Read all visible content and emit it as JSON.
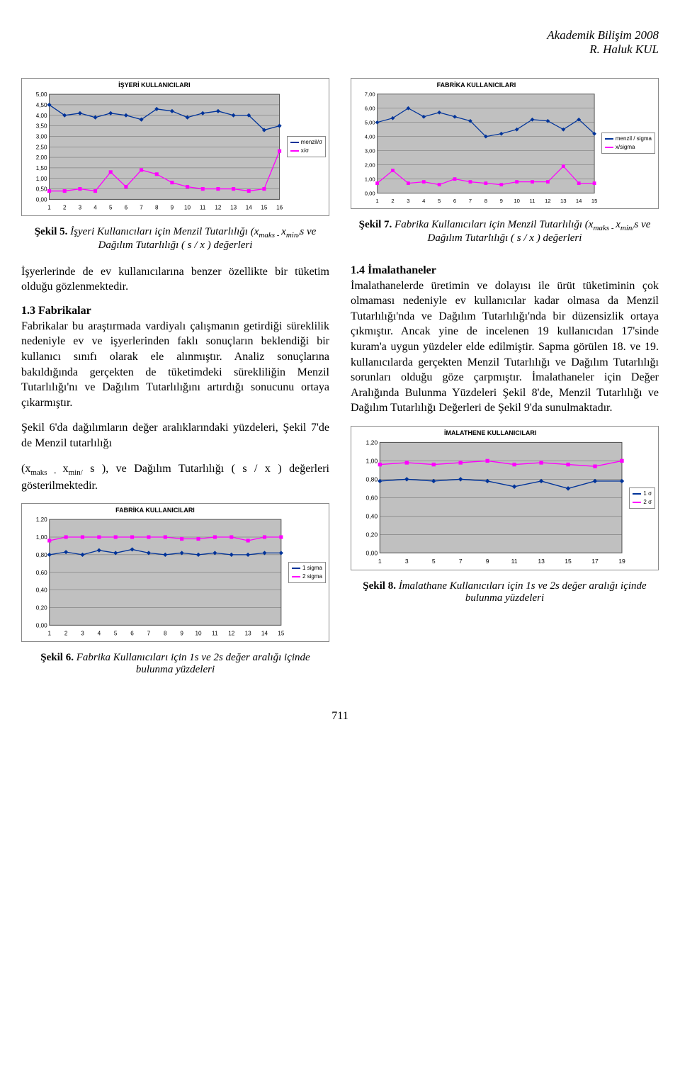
{
  "header": {
    "conference": "Akademik Bilişim 2008",
    "author": "R. Haluk KUL"
  },
  "chart5": {
    "type": "line",
    "title": "İŞYERİ KULLANICILARI",
    "x": [
      1,
      2,
      3,
      4,
      5,
      6,
      7,
      8,
      9,
      10,
      11,
      12,
      13,
      14,
      15,
      16
    ],
    "series": [
      {
        "name": "menzil/σ",
        "color": "#003399",
        "marker": "diamond",
        "y": [
          4.5,
          4.0,
          4.1,
          3.9,
          4.1,
          4.0,
          3.8,
          4.3,
          4.2,
          3.9,
          4.1,
          4.2,
          4.0,
          4.0,
          3.3,
          3.5
        ]
      },
      {
        "name": "x/σ",
        "color": "#ff00ff",
        "marker": "square",
        "y": [
          0.4,
          0.4,
          0.5,
          0.4,
          1.3,
          0.6,
          1.4,
          1.2,
          0.8,
          0.6,
          0.5,
          0.5,
          0.5,
          0.4,
          0.5,
          2.3
        ]
      }
    ],
    "ylim": [
      0,
      5
    ],
    "ytick_step": 0.5,
    "ytick_labels": [
      "0,00",
      "0,50",
      "1,00",
      "1,50",
      "2,00",
      "2,50",
      "3,00",
      "3,50",
      "4,00",
      "4,50",
      "5,00"
    ],
    "bg": "#c0c0c0",
    "grid": "#555",
    "title_fontsize": 9,
    "axis_fontsize": 8
  },
  "chart7": {
    "type": "line",
    "title": "FABRİKA KULLANICILARI",
    "x": [
      1,
      2,
      3,
      4,
      5,
      6,
      7,
      8,
      9,
      10,
      11,
      12,
      13,
      14,
      15
    ],
    "series": [
      {
        "name": "menzil / sigma",
        "color": "#003399",
        "marker": "diamond",
        "y": [
          5.0,
          5.3,
          6.0,
          5.4,
          5.7,
          5.4,
          5.1,
          4.0,
          4.2,
          4.5,
          5.2,
          5.1,
          4.5,
          5.2,
          4.2
        ]
      },
      {
        "name": "x/sigma",
        "color": "#ff00ff",
        "marker": "square",
        "y": [
          0.7,
          1.6,
          0.7,
          0.8,
          0.6,
          1.0,
          0.8,
          0.7,
          0.6,
          0.8,
          0.8,
          0.8,
          1.9,
          0.7,
          0.7
        ]
      }
    ],
    "ylim": [
      0,
      7
    ],
    "ytick_step": 1,
    "ytick_labels": [
      "0,00",
      "1,00",
      "2,00",
      "3,00",
      "4,00",
      "5,00",
      "6,00",
      "7,00"
    ],
    "bg": "#c0c0c0",
    "grid": "#555",
    "title_fontsize": 9,
    "axis_fontsize": 8
  },
  "chart6": {
    "type": "line",
    "title": "FABRİKA KULLANICILARI",
    "x": [
      1,
      2,
      3,
      4,
      5,
      6,
      7,
      8,
      9,
      10,
      11,
      12,
      13,
      14,
      15
    ],
    "series": [
      {
        "name": "1 sigma",
        "color": "#003399",
        "marker": "diamond",
        "y": [
          0.8,
          0.83,
          0.8,
          0.85,
          0.82,
          0.86,
          0.82,
          0.8,
          0.82,
          0.8,
          0.82,
          0.8,
          0.8,
          0.82,
          0.82
        ]
      },
      {
        "name": "2 sigma",
        "color": "#ff00ff",
        "marker": "square",
        "y": [
          0.96,
          1.0,
          1.0,
          1.0,
          1.0,
          1.0,
          1.0,
          1.0,
          0.98,
          0.98,
          1.0,
          1.0,
          0.96,
          1.0,
          1.0
        ]
      }
    ],
    "ylim": [
      0,
      1.2
    ],
    "ytick_step": 0.2,
    "ytick_labels": [
      "0,00",
      "0,20",
      "0,40",
      "0,60",
      "0,80",
      "1,00",
      "1,20"
    ],
    "bg": "#c0c0c0",
    "grid": "#555",
    "title_fontsize": 9,
    "axis_fontsize": 8
  },
  "chart8": {
    "type": "line",
    "title": "İMALATHENE KULLANICILARI",
    "x": [
      1,
      3,
      5,
      7,
      9,
      11,
      13,
      15,
      17,
      19
    ],
    "series": [
      {
        "name": "1 σ",
        "color": "#003399",
        "marker": "diamond",
        "y": [
          0.78,
          0.8,
          0.78,
          0.8,
          0.78,
          0.72,
          0.78,
          0.7,
          0.78,
          0.78
        ]
      },
      {
        "name": "2 σ",
        "color": "#ff00ff",
        "marker": "square",
        "y": [
          0.96,
          0.98,
          0.96,
          0.98,
          1.0,
          0.96,
          0.98,
          0.96,
          0.94,
          1.0
        ]
      }
    ],
    "ylim": [
      0,
      1.2
    ],
    "ytick_step": 0.2,
    "ytick_labels": [
      "0,00",
      "0,20",
      "0,40",
      "0,60",
      "0,80",
      "1,00",
      "1,20"
    ],
    "bg": "#c0c0c0",
    "grid": "#555",
    "title_fontsize": 9,
    "axis_fontsize": 8
  },
  "captions": {
    "c5_bold": "Şekil 5.",
    "c5_it1": " İşyeri Kullanıcıları için Menzil Tutarlılığı (x",
    "c5_sub1": "maks - ",
    "c5_it1b": "x",
    "c5_sub2": "min/",
    "c5_it2": "s   ve Dağılım Tutarlılığı ( s  / x ) değerleri",
    "c7_bold": "Şekil 7.",
    "c7_it1": " Fabrika Kullanıcıları için Menzil Tutarlılığı (x",
    "c7_sub1": "maks - ",
    "c7_it1b": "x",
    "c7_sub2": "min/",
    "c7_it2": "s   ve Dağılım Tutarlılığı ( s  / x ) değerleri",
    "c6_bold": "Şekil 6.",
    "c6_it": " Fabrika Kullanıcıları için  1s   ve 2s  değer aralığı içinde bulunma yüzdeleri",
    "c8_bold": "Şekil 8.",
    "c8_it": " İmalathane Kullanıcıları için 1s   ve 2s   değer aralığı içinde bulunma yüzdeleri"
  },
  "body": {
    "pLeft1": "İşyerlerinde de ev kullanıcılarına benzer özellikte bir tüketim olduğu gözlenmektedir.",
    "head13": "1.3 Fabrikalar",
    "pLeft2": "Fabrikalar bu araştırmada vardiyalı çalışmanın getirdiği süreklilik nedeniyle ev ve işyerlerinden faklı sonuçların beklendiği bir kullanıcı sınıfı olarak ele alınmıştır. Analiz sonuçlarına bakıldığında gerçekten de tüketimdeki sürekliliğin Menzil Tutarlılığı'nı ve Dağılım Tutarlılığını artırdığı sonucunu ortaya çıkarmıştır.",
    "pLeft3a": "Şekil 6'da dağılımların değer aralıklarındaki yüzdeleri, Şekil 7'de de Menzil  tutarlılığı",
    "pLeft3b_pre": "(x",
    "pLeft3b_sub1": "maks - ",
    "pLeft3b_mid": "x",
    "pLeft3b_sub2": "min/",
    "pLeft3b_post": " s  ), ve Dağılım Tutarlılığı ( s  / x ) değerleri gösterilmektedir.",
    "head14": "1.4 İmalathaneler",
    "pRight1": "İmalathanelerde üretimin ve dolayısı ile ürüt tüketiminin çok olmaması nedeniyle ev kullanıcılar kadar olmasa da Menzil Tutarlılığı'nda ve Dağılım Tutarlılığı'nda bir düzensizlik ortaya çıkmıştır. Ancak yine de incelenen 19 kullanıcıdan 17'sinde kuram'a uygun yüzdeler elde edilmiştir. Sapma görülen 18. ve 19. kullanıcılarda gerçekten Menzil Tutarlılığı ve Dağılım Tutarlılığı sorunları olduğu göze çarpmıştır. İmalathaneler için Değer Aralığında Bulunma Yüzdeleri Şekil 8'de,  Menzil Tutarlılığı ve Dağılım Tutarlılığı Değerleri de Şekil 9'da sunulmaktadır."
  },
  "page_number": "711"
}
